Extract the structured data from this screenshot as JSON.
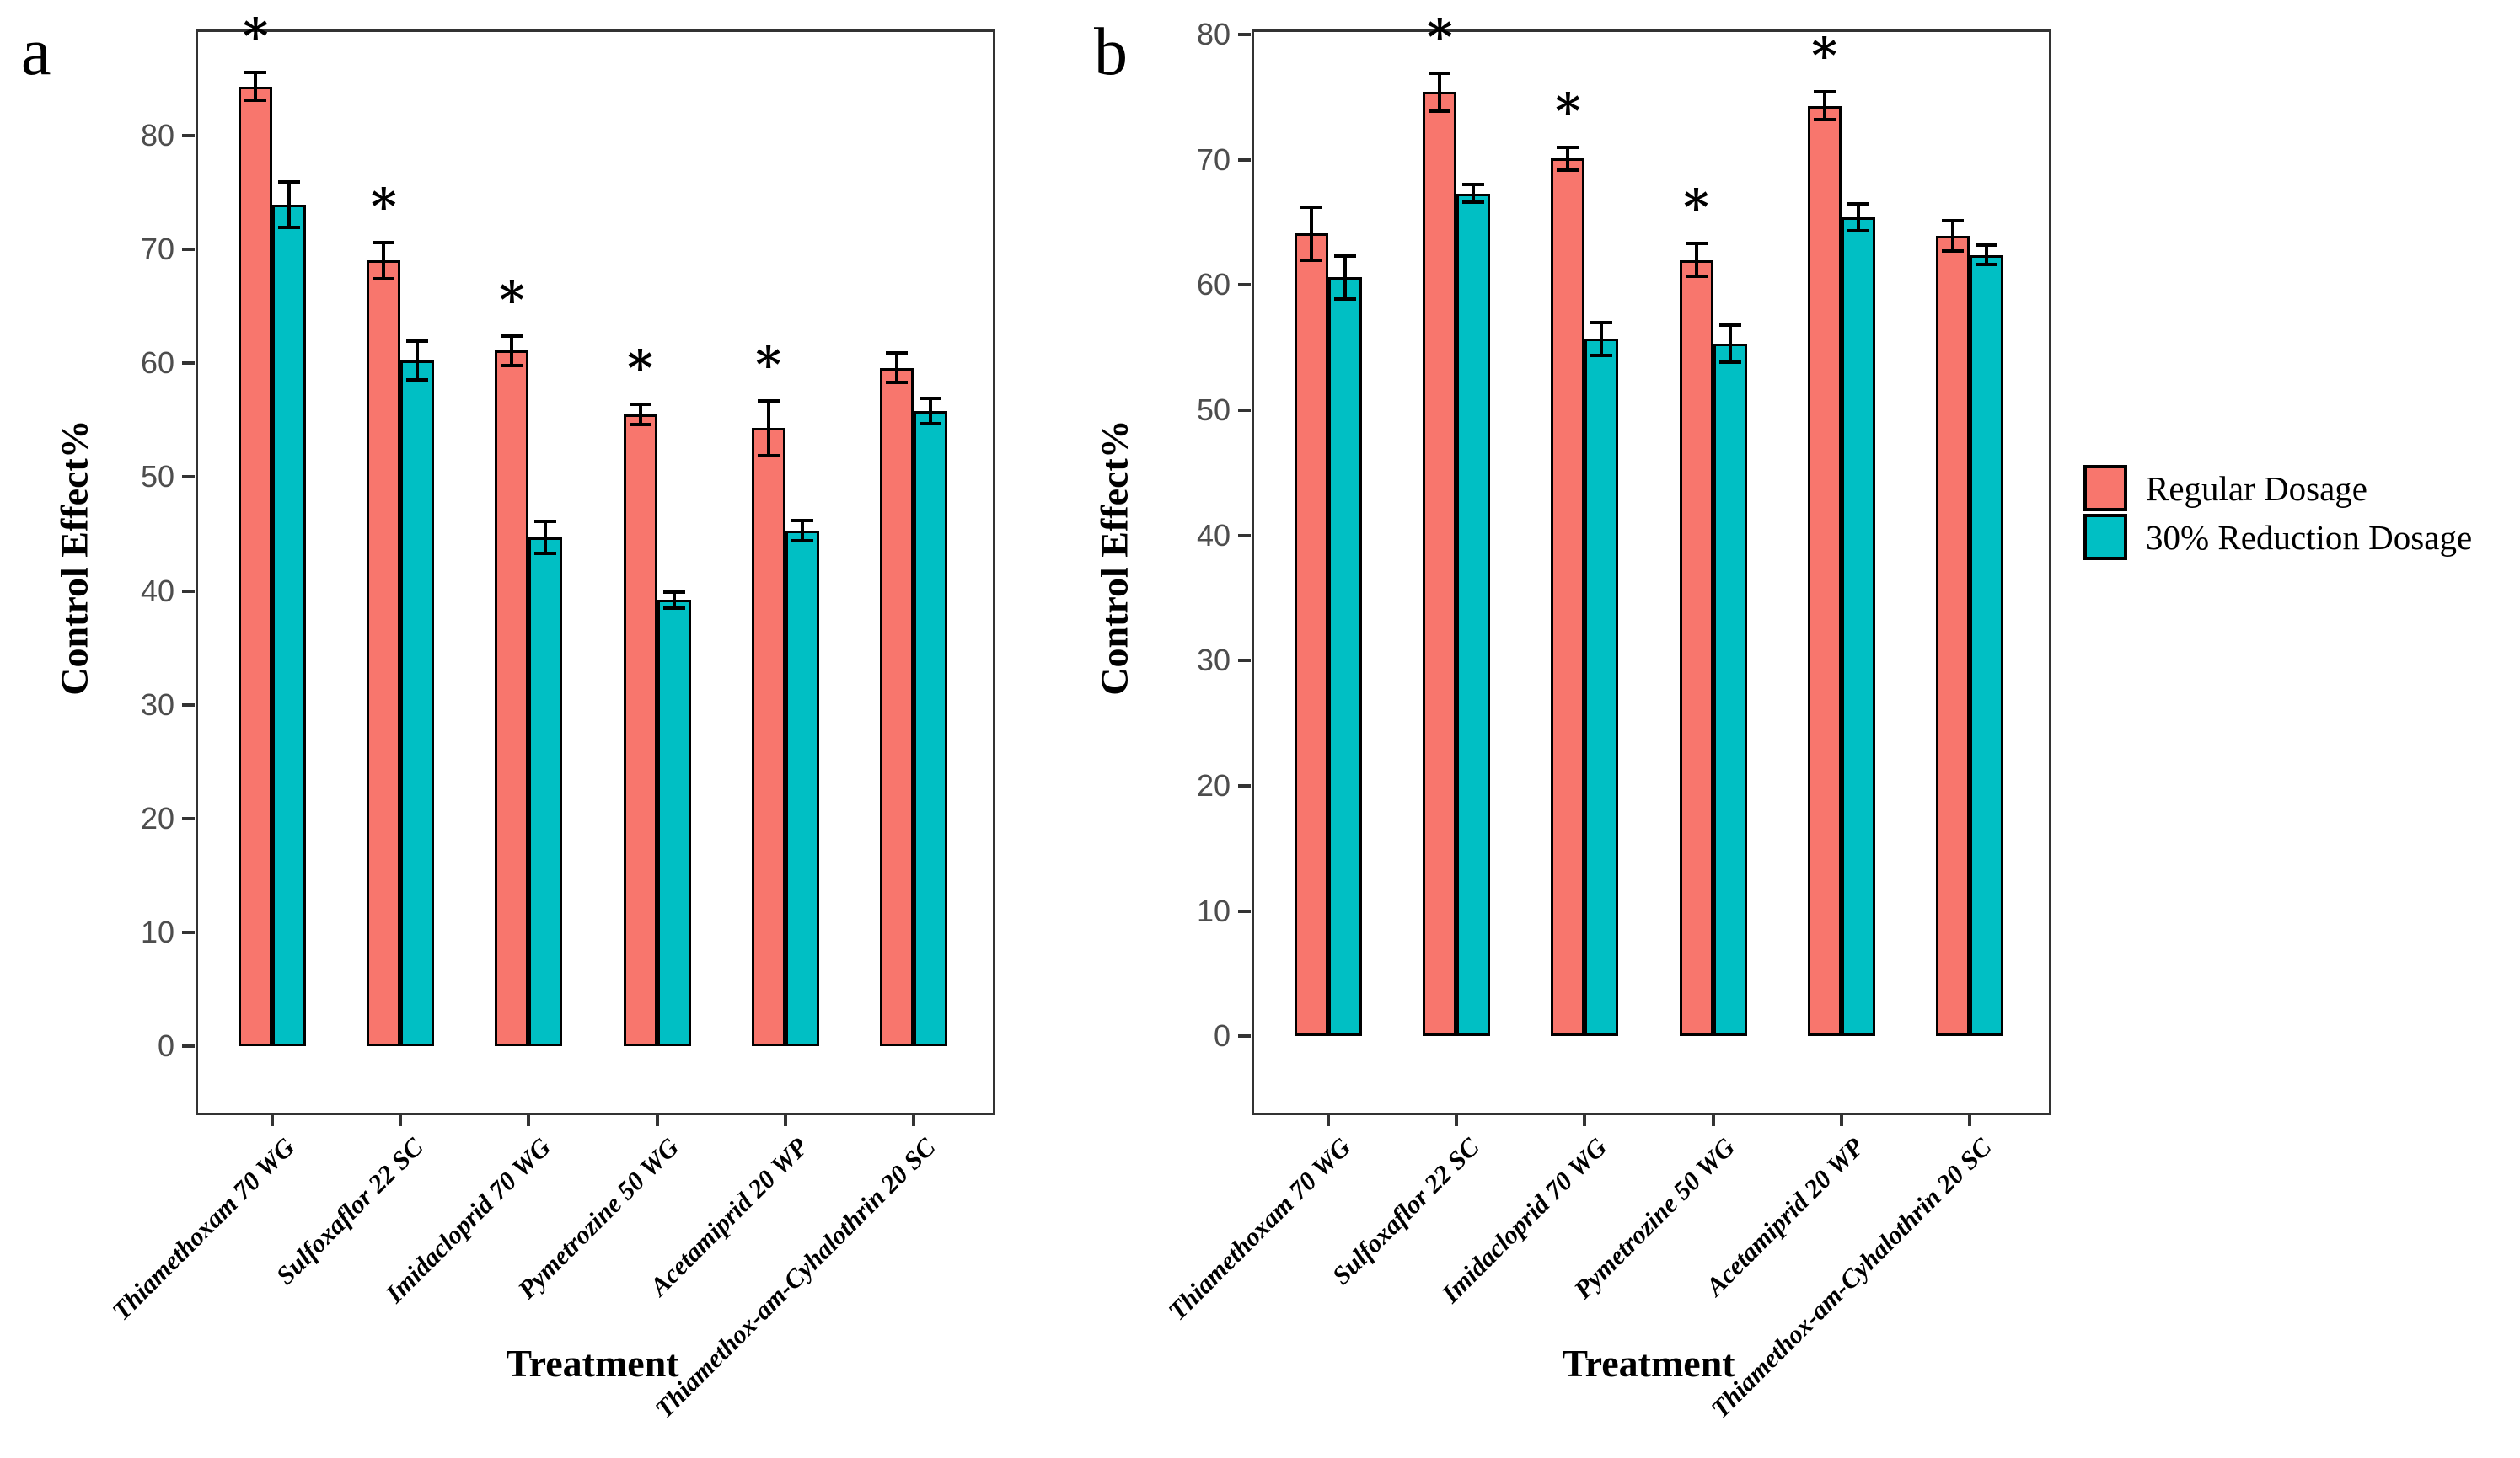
{
  "significance_marker": "*",
  "legend": {
    "entries": [
      "Regular Dosage",
      "30% Reduction Dosage"
    ]
  },
  "chart_data": [
    {
      "panel_label": "a",
      "type": "bar",
      "xlabel": "Treatment",
      "ylabel": "Control Effect%",
      "yticks": [
        0,
        10,
        20,
        30,
        40,
        50,
        60,
        70,
        80
      ],
      "ylim": [
        -5.6,
        89.3
      ],
      "grid": false,
      "legend_position": "right",
      "categories": [
        "Thiamethoxam 70 WG",
        "Sulfoxaflor 22 SC",
        "Imidacloprid 70 WG",
        "Pymetrozine 50 WG",
        "Acetamiprid 20 WP",
        "Thiamethox-am-Cyhalothrin 20 SC"
      ],
      "series": [
        {
          "name": "Regular Dosage",
          "color": "#F8766D",
          "values": [
            84.3,
            69.0,
            61.1,
            55.5,
            54.3,
            59.6
          ],
          "errors": [
            1.2,
            1.6,
            1.3,
            0.9,
            2.4,
            1.3
          ],
          "significant": [
            true,
            true,
            true,
            true,
            true,
            false
          ]
        },
        {
          "name": "30% Reduction Dosage",
          "color": "#00BFC4",
          "values": [
            73.9,
            60.2,
            44.7,
            39.2,
            45.3,
            55.8
          ],
          "errors": [
            2.0,
            1.7,
            1.4,
            0.7,
            0.9,
            1.1
          ],
          "significant": [
            false,
            false,
            false,
            false,
            false,
            false
          ]
        }
      ]
    },
    {
      "panel_label": "b",
      "type": "bar",
      "xlabel": "Treatment",
      "ylabel": "Control Effect%",
      "yticks": [
        0,
        10,
        20,
        30,
        40,
        50,
        60,
        70,
        80
      ],
      "ylim": [
        -5.9,
        80.4
      ],
      "grid": false,
      "legend_position": "right",
      "categories": [
        "Thiamethoxam 70 WG",
        "Sulfoxaflor 22 SC",
        "Imidacloprid 70 WG",
        "Pymetrozine 50 WG",
        "Acetamiprid 20 WP",
        "Thiamethox-am-Cyhalothrin 20 SC"
      ],
      "series": [
        {
          "name": "Regular Dosage",
          "color": "#F8766D",
          "values": [
            64.1,
            75.4,
            70.1,
            62.0,
            74.3,
            63.9
          ],
          "errors": [
            2.1,
            1.5,
            0.9,
            1.3,
            1.1,
            1.2
          ],
          "significant": [
            false,
            true,
            true,
            true,
            true,
            false
          ]
        },
        {
          "name": "30% Reduction Dosage",
          "color": "#00BFC4",
          "values": [
            60.6,
            67.3,
            55.7,
            55.3,
            65.4,
            62.4
          ],
          "errors": [
            1.7,
            0.7,
            1.3,
            1.5,
            1.1,
            0.8
          ],
          "significant": [
            false,
            false,
            false,
            false,
            false,
            false
          ]
        }
      ]
    }
  ]
}
